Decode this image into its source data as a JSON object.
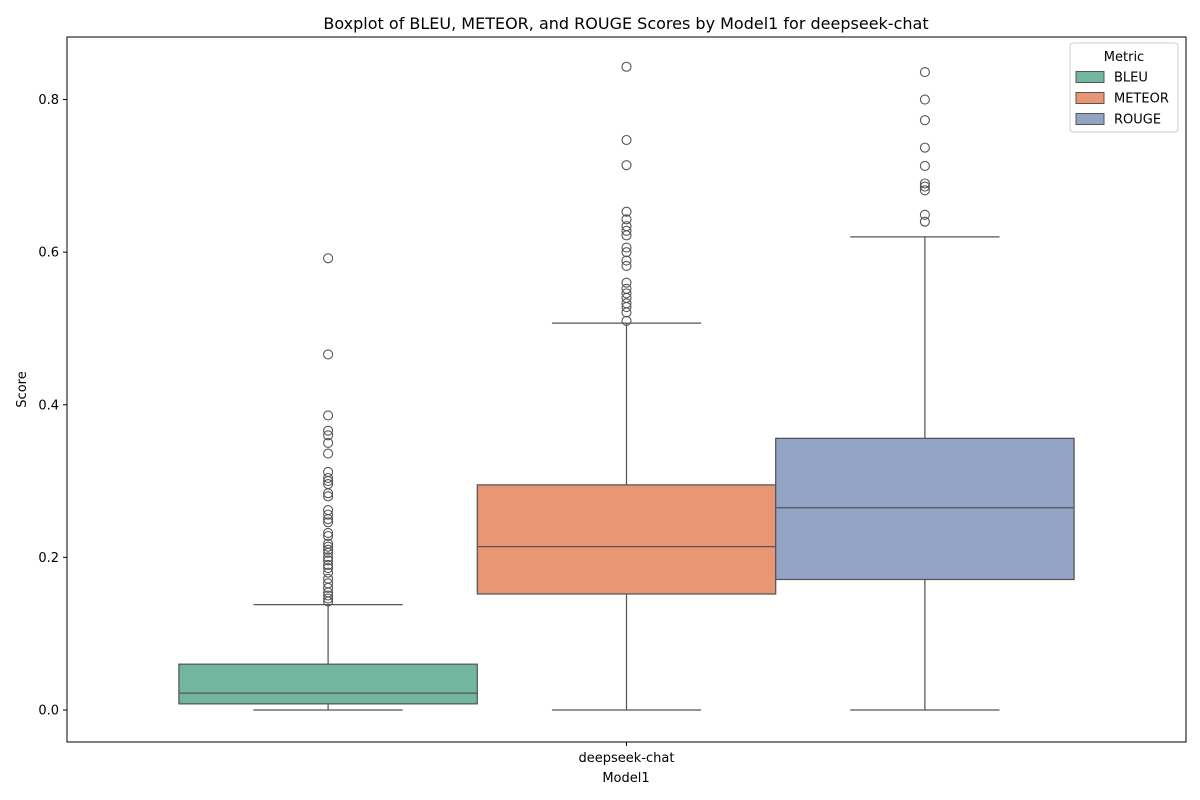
{
  "chart_data": {
    "type": "boxplot",
    "title": "Boxplot of BLEU, METEOR, and ROUGE Scores by Model1 for deepseek-chat",
    "xlabel": "Model1",
    "ylabel": "Score",
    "categories": [
      "deepseek-chat"
    ],
    "ylim": [
      -0.042,
      0.882
    ],
    "yticks": [
      0.0,
      0.2,
      0.4,
      0.6,
      0.8
    ],
    "ytick_labels": [
      "0.0",
      "0.2",
      "0.4",
      "0.6",
      "0.8"
    ],
    "grid": false,
    "legend": {
      "title": "Metric",
      "placement": "top-right"
    },
    "series": [
      {
        "name": "BLEU",
        "color": "#73b69f",
        "whisker_low": 0.0,
        "q1": 0.008,
        "median": 0.022,
        "q3": 0.06,
        "whisker_high": 0.138,
        "outliers": [
          0.592,
          0.466,
          0.386,
          0.366,
          0.36,
          0.35,
          0.336,
          0.312,
          0.304,
          0.3,
          0.296,
          0.284,
          0.28,
          0.262,
          0.256,
          0.25,
          0.246,
          0.232,
          0.228,
          0.218,
          0.214,
          0.21,
          0.206,
          0.2,
          0.196,
          0.19,
          0.186,
          0.18,
          0.172,
          0.166,
          0.16,
          0.154,
          0.15,
          0.146,
          0.142
        ]
      },
      {
        "name": "METEOR",
        "color": "#e99675",
        "whisker_low": 0.0,
        "q1": 0.152,
        "median": 0.214,
        "q3": 0.295,
        "whisker_high": 0.507,
        "outliers": [
          0.843,
          0.747,
          0.714,
          0.653,
          0.643,
          0.634,
          0.628,
          0.622,
          0.606,
          0.6,
          0.589,
          0.582,
          0.56,
          0.552,
          0.546,
          0.54,
          0.533,
          0.528,
          0.521,
          0.51
        ]
      },
      {
        "name": "ROUGE",
        "color": "#93a3c4",
        "whisker_low": 0.0,
        "q1": 0.171,
        "median": 0.265,
        "q3": 0.356,
        "whisker_high": 0.62,
        "outliers": [
          0.836,
          0.8,
          0.773,
          0.737,
          0.713,
          0.69,
          0.686,
          0.681,
          0.649,
          0.64
        ]
      }
    ]
  }
}
